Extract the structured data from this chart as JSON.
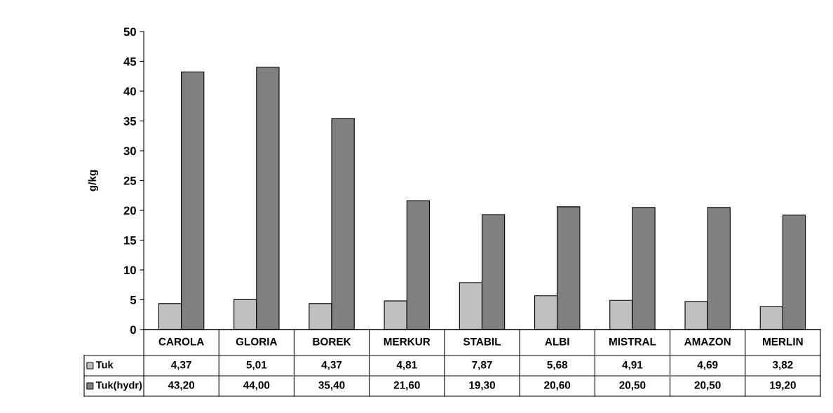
{
  "chart_data": {
    "type": "bar",
    "ylabel": "g/kg",
    "categories": [
      "CAROLA",
      "GLORIA",
      "BOREK",
      "MERKUR",
      "STABIL",
      "ALBI",
      "MISTRAL",
      "AMAZON",
      "MERLIN"
    ],
    "series": [
      {
        "name": "Tuk",
        "color": "#c0c0c0",
        "values": [
          4.37,
          5.01,
          4.37,
          4.81,
          7.87,
          5.68,
          4.91,
          4.69,
          3.82
        ],
        "value_labels": [
          "4,37",
          "5,01",
          "4,37",
          "4,81",
          "7,87",
          "5,68",
          "4,91",
          "4,69",
          "3,82"
        ]
      },
      {
        "name": "Tuk(hydr)",
        "color": "#808080",
        "values": [
          43.2,
          44.0,
          35.4,
          21.6,
          19.3,
          20.6,
          20.5,
          20.5,
          19.2
        ],
        "value_labels": [
          "43,20",
          "44,00",
          "35,40",
          "21,60",
          "19,30",
          "20,60",
          "20,50",
          "20,50",
          "19,20"
        ]
      }
    ],
    "ylim": [
      0,
      50
    ],
    "yticks": [
      0,
      5,
      10,
      15,
      20,
      25,
      30,
      35,
      40,
      45,
      50
    ],
    "grid": false,
    "legend": "bottom"
  }
}
